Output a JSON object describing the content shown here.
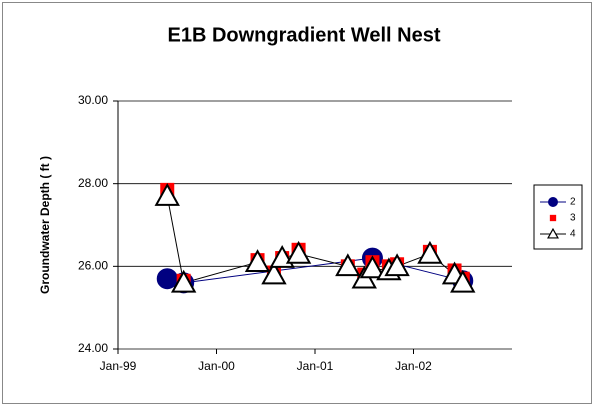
{
  "chart_data": {
    "type": "scatter",
    "title": "E1B Downgradient Well Nest",
    "y_label": "Groundwater Depth ( ft )",
    "xlim": [
      "1999-01",
      "2003-01"
    ],
    "xticks": [
      {
        "value": "1999-01",
        "label": "Jan-99"
      },
      {
        "value": "2000-01",
        "label": "Jan-00"
      },
      {
        "value": "2001-01",
        "label": "Jan-01"
      },
      {
        "value": "2002-01",
        "label": "Jan-02"
      }
    ],
    "ylim": [
      24,
      30
    ],
    "yticks": [
      {
        "value": 24,
        "label": "24.00"
      },
      {
        "value": 26,
        "label": "26.00"
      },
      {
        "value": 28,
        "label": "28.00"
      },
      {
        "value": 30,
        "label": "30.00"
      }
    ],
    "grid": true,
    "legend": "right",
    "series": [
      {
        "name": "2",
        "color": "#000080",
        "marker": "circle",
        "line": true,
        "x": [
          "1999-07",
          "1999-09",
          "2001-08",
          "2002-07"
        ],
        "values": [
          25.7,
          25.6,
          26.2,
          25.65
        ]
      },
      {
        "name": "3",
        "color": "#ff0000",
        "marker": "square",
        "line": false,
        "x": [
          "1999-07",
          "1999-09",
          "2000-06",
          "2000-08",
          "2000-09",
          "2000-11",
          "2001-05",
          "2001-07",
          "2001-08",
          "2001-10",
          "2001-11",
          "2002-03",
          "2002-06",
          "2002-07"
        ],
        "values": [
          27.85,
          25.65,
          26.15,
          25.85,
          26.2,
          26.4,
          26.0,
          25.8,
          26.1,
          26.0,
          26.05,
          26.35,
          25.9,
          25.7
        ]
      },
      {
        "name": "4",
        "color": "#000000",
        "marker": "triangle",
        "line": true,
        "x": [
          "1999-07",
          "1999-09",
          "2000-06",
          "2000-08",
          "2000-09",
          "2000-11",
          "2001-05",
          "2001-07",
          "2001-08",
          "2001-10",
          "2001-11",
          "2002-03",
          "2002-06",
          "2002-07"
        ],
        "values": [
          27.7,
          25.6,
          26.1,
          25.8,
          26.2,
          26.3,
          26.0,
          25.7,
          25.95,
          25.9,
          26.0,
          26.3,
          25.8,
          25.6
        ]
      }
    ]
  }
}
